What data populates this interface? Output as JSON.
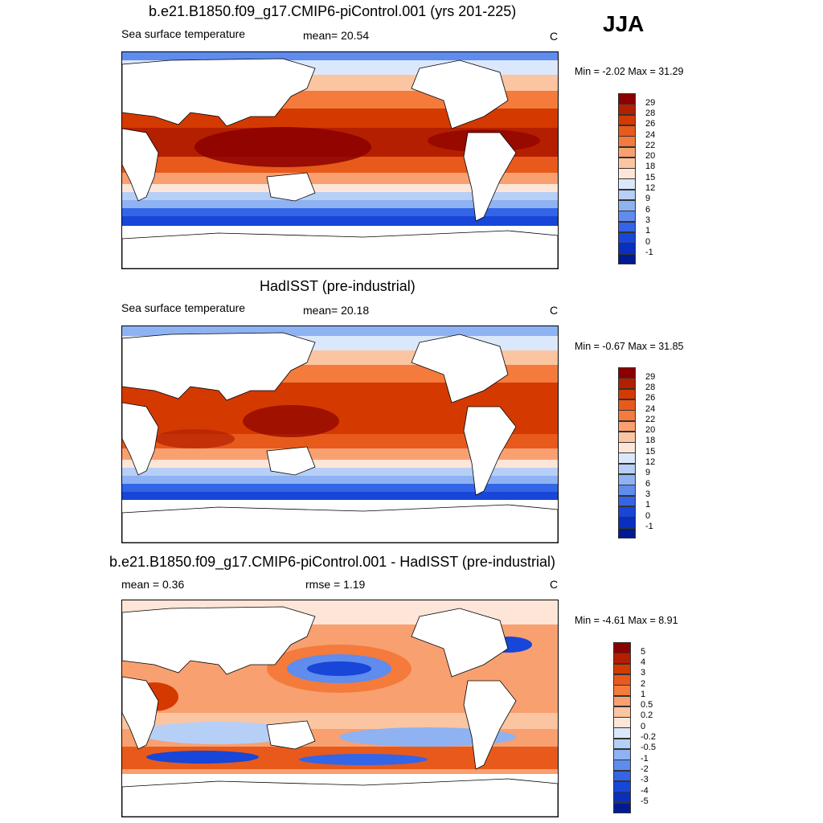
{
  "season": "JJA",
  "panels": [
    {
      "title": "b.e21.B1850.f09_g17.CMIP6-piControl.001 (yrs 201-225)",
      "left_label": "Sea surface temperature",
      "center_label": "mean=  20.54",
      "units": "C",
      "minmax": "Min =  -2.02 Max =  31.29",
      "colorbar": {
        "labels": [
          "29",
          "28",
          "26",
          "24",
          "22",
          "20",
          "18",
          "15",
          "12",
          "9",
          "6",
          "3",
          "1",
          "0",
          "-1"
        ],
        "colors": [
          "#8b0000",
          "#b41f00",
          "#d43a00",
          "#e85a1c",
          "#f47b3c",
          "#f9a070",
          "#fcc5a2",
          "#fde6d8",
          "#dbe8fb",
          "#b6cff7",
          "#8eb2f2",
          "#5f8ced",
          "#3465e6",
          "#1746d8",
          "#0a2fbf",
          "#001a92"
        ]
      }
    },
    {
      "title": "HadISST (pre-industrial)",
      "left_label": "Sea surface temperature",
      "center_label": "mean=  20.18",
      "units": "C",
      "minmax": "Min =  -0.67 Max =  31.85",
      "colorbar": {
        "labels": [
          "29",
          "28",
          "26",
          "24",
          "22",
          "20",
          "18",
          "15",
          "12",
          "9",
          "6",
          "3",
          "1",
          "0",
          "-1"
        ],
        "colors": [
          "#8b0000",
          "#b41f00",
          "#d43a00",
          "#e85a1c",
          "#f47b3c",
          "#f9a070",
          "#fcc5a2",
          "#fde6d8",
          "#dbe8fb",
          "#b6cff7",
          "#8eb2f2",
          "#5f8ced",
          "#3465e6",
          "#1746d8",
          "#0a2fbf",
          "#001a92"
        ]
      }
    },
    {
      "title": "b.e21.B1850.f09_g17.CMIP6-piControl.001 - HadISST (pre-industrial)",
      "left_label": "mean =   0.36",
      "center_label": "rmse =   1.19",
      "units": "C",
      "minmax": "Min =  -4.61 Max =   8.91",
      "colorbar": {
        "labels": [
          "5",
          "4",
          "3",
          "2",
          "1",
          "0.5",
          "0.2",
          "0",
          "-0.2",
          "-0.5",
          "-1",
          "-2",
          "-3",
          "-4",
          "-5"
        ],
        "colors": [
          "#8b0000",
          "#b41f00",
          "#d43a00",
          "#e85a1c",
          "#f47b3c",
          "#f9a070",
          "#fcc5a2",
          "#fde6d8",
          "#dbe8fb",
          "#b6cff7",
          "#8eb2f2",
          "#5f8ced",
          "#3465e6",
          "#1746d8",
          "#0a2fbf",
          "#001a92"
        ]
      }
    }
  ]
}
